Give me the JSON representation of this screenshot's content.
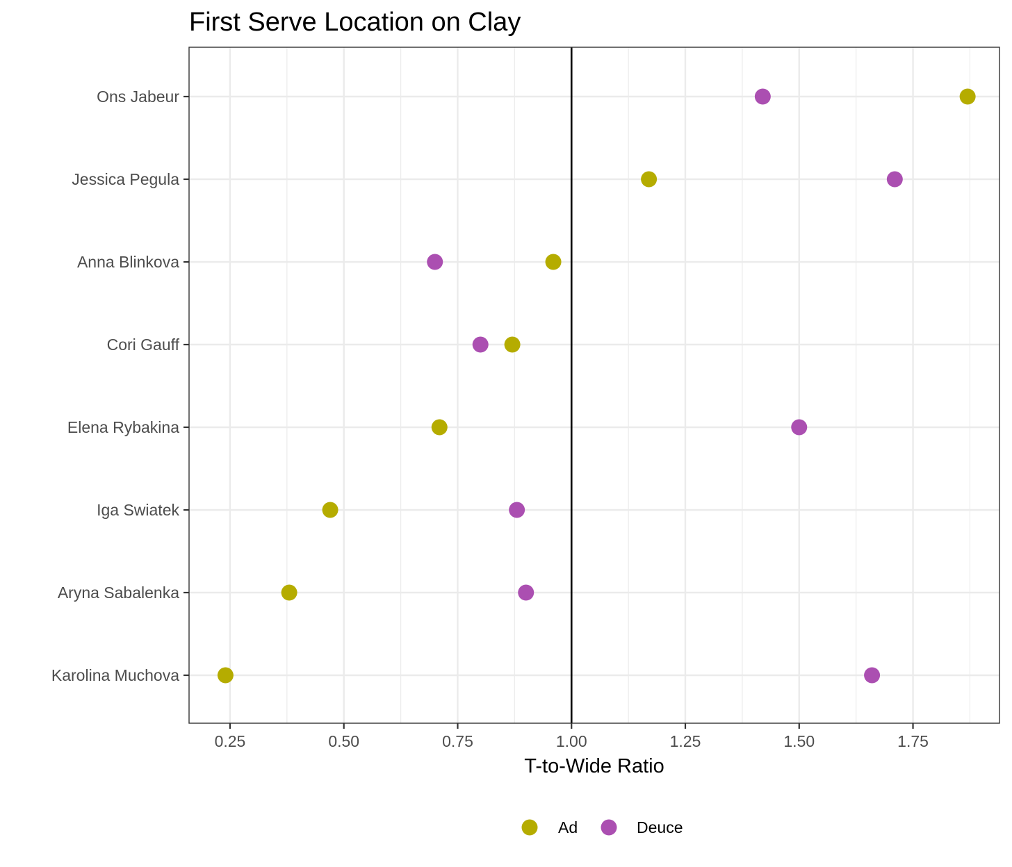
{
  "chart_data": {
    "type": "scatter",
    "title": "First Serve Location on Clay",
    "xlabel": "T-to-Wide Ratio",
    "ylabel": "",
    "xlim": [
      0.16,
      1.94
    ],
    "x_ticks": [
      0.25,
      0.5,
      0.75,
      1.0,
      1.25,
      1.5,
      1.75
    ],
    "x_tick_labels": [
      "0.25",
      "0.50",
      "0.75",
      "1.00",
      "1.25",
      "1.50",
      "1.75"
    ],
    "reference_line_x": 1.0,
    "categories": [
      "Ons Jabeur",
      "Jessica Pegula",
      "Anna Blinkova",
      "Cori Gauff",
      "Elena Rybakina",
      "Iga Swiatek",
      "Aryna Sabalenka",
      "Karolina Muchova"
    ],
    "series": [
      {
        "name": "Ad",
        "color": "#b5ac00",
        "values": [
          1.87,
          1.17,
          0.96,
          0.87,
          0.71,
          0.47,
          0.38,
          0.24
        ]
      },
      {
        "name": "Deuce",
        "color": "#ab4fb1",
        "values": [
          1.42,
          1.71,
          0.7,
          0.8,
          1.5,
          0.88,
          0.9,
          1.66
        ]
      }
    ],
    "grid": true,
    "legend_position": "bottom"
  }
}
